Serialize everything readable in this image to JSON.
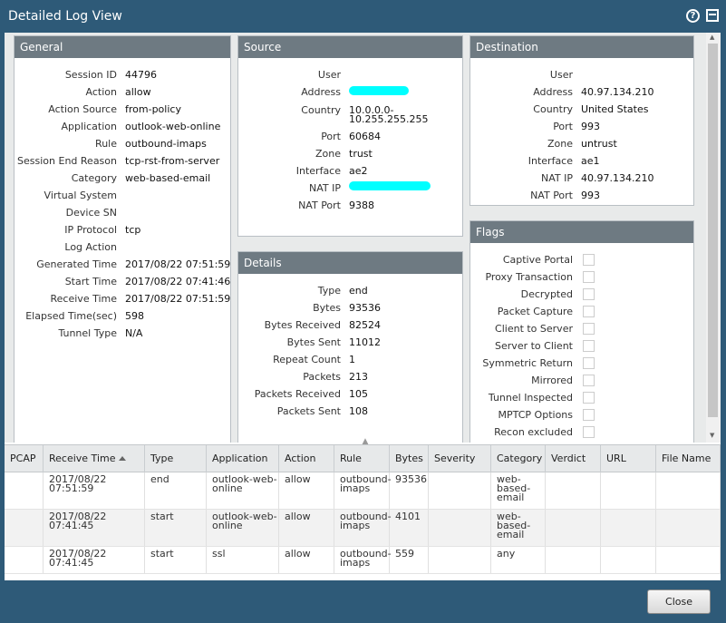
{
  "window": {
    "title": "Detailed Log View"
  },
  "general": {
    "header": "General",
    "fields": [
      {
        "label": "Session ID",
        "value": "44796"
      },
      {
        "label": "Action",
        "value": "allow"
      },
      {
        "label": "Action Source",
        "value": "from-policy"
      },
      {
        "label": "Application",
        "value": "outlook-web-online"
      },
      {
        "label": "Rule",
        "value": "outbound-imaps"
      },
      {
        "label": "Session End Reason",
        "value": "tcp-rst-from-server"
      },
      {
        "label": "Category",
        "value": "web-based-email"
      },
      {
        "label": "Virtual System",
        "value": ""
      },
      {
        "label": "Device SN",
        "value": ""
      },
      {
        "label": "IP Protocol",
        "value": "tcp"
      },
      {
        "label": "Log Action",
        "value": ""
      },
      {
        "label": "Generated Time",
        "value": "2017/08/22 07:51:59"
      },
      {
        "label": "Start Time",
        "value": "2017/08/22 07:41:46"
      },
      {
        "label": "Receive Time",
        "value": "2017/08/22 07:51:59"
      },
      {
        "label": "Elapsed Time(sec)",
        "value": "598"
      },
      {
        "label": "Tunnel Type",
        "value": "N/A"
      }
    ]
  },
  "source": {
    "header": "Source",
    "fields": [
      {
        "label": "User",
        "value": ""
      },
      {
        "label": "Address",
        "value": ""
      },
      {
        "label": "Country",
        "value": "10.0.0.0-",
        "value2": "10.255.255.255"
      },
      {
        "label": "Port",
        "value": "60684"
      },
      {
        "label": "Zone",
        "value": "trust"
      },
      {
        "label": "Interface",
        "value": "ae2"
      },
      {
        "label": "NAT IP",
        "value": ""
      },
      {
        "label": "NAT Port",
        "value": "9388"
      }
    ]
  },
  "destination": {
    "header": "Destination",
    "fields": [
      {
        "label": "User",
        "value": ""
      },
      {
        "label": "Address",
        "value": "40.97.134.210"
      },
      {
        "label": "Country",
        "value": "United States"
      },
      {
        "label": "Port",
        "value": "993"
      },
      {
        "label": "Zone",
        "value": "untrust"
      },
      {
        "label": "Interface",
        "value": "ae1"
      },
      {
        "label": "NAT IP",
        "value": "40.97.134.210"
      },
      {
        "label": "NAT Port",
        "value": "993"
      }
    ]
  },
  "details": {
    "header": "Details",
    "fields": [
      {
        "label": "Type",
        "value": "end"
      },
      {
        "label": "Bytes",
        "value": "93536"
      },
      {
        "label": "Bytes Received",
        "value": "82524"
      },
      {
        "label": "Bytes Sent",
        "value": "11012"
      },
      {
        "label": "Repeat Count",
        "value": "1"
      },
      {
        "label": "Packets",
        "value": "213"
      },
      {
        "label": "Packets Received",
        "value": "105"
      },
      {
        "label": "Packets Sent",
        "value": "108"
      }
    ]
  },
  "flags": {
    "header": "Flags",
    "items": [
      {
        "label": "Captive Portal",
        "checked": false
      },
      {
        "label": "Proxy Transaction",
        "checked": false
      },
      {
        "label": "Decrypted",
        "checked": false
      },
      {
        "label": "Packet Capture",
        "checked": false
      },
      {
        "label": "Client to Server",
        "checked": false
      },
      {
        "label": "Server to Client",
        "checked": false
      },
      {
        "label": "Symmetric Return",
        "checked": false
      },
      {
        "label": "Mirrored",
        "checked": false
      },
      {
        "label": "Tunnel Inspected",
        "checked": false
      },
      {
        "label": "MPTCP Options",
        "checked": false
      },
      {
        "label": "Recon excluded",
        "checked": false
      }
    ]
  },
  "log_table": {
    "columns": [
      "PCAP",
      "Receive Time",
      "Type",
      "Application",
      "Action",
      "Rule",
      "Bytes",
      "Severity",
      "Category",
      "Verdict",
      "URL",
      "File Name"
    ],
    "sorted_column": "Receive Time",
    "rows": [
      {
        "pcap": "",
        "receive_time": [
          "2017/08/22",
          "07:51:59"
        ],
        "type": "end",
        "application": [
          "outlook-web-",
          "online"
        ],
        "action": "allow",
        "rule": [
          "outbound-",
          "imaps"
        ],
        "bytes": "93536",
        "severity": "",
        "category": [
          "web-",
          "based-",
          "email"
        ],
        "verdict": "",
        "url": "",
        "file_name": ""
      },
      {
        "pcap": "",
        "receive_time": [
          "2017/08/22",
          "07:41:45"
        ],
        "type": "start",
        "application": [
          "outlook-web-",
          "online"
        ],
        "action": "allow",
        "rule": [
          "outbound-",
          "imaps"
        ],
        "bytes": "4101",
        "severity": "",
        "category": [
          "web-",
          "based-",
          "email"
        ],
        "verdict": "",
        "url": "",
        "file_name": ""
      },
      {
        "pcap": "",
        "receive_time": [
          "2017/08/22",
          "07:41:45"
        ],
        "type": "start",
        "application": [
          "ssl"
        ],
        "action": "allow",
        "rule": [
          "outbound-",
          "imaps"
        ],
        "bytes": "559",
        "severity": "",
        "category": [
          "any"
        ],
        "verdict": "",
        "url": "",
        "file_name": ""
      }
    ]
  },
  "footer": {
    "close_label": "Close"
  },
  "colors": {
    "titlebar": "#2e5a78",
    "panel_header": "#6e7a82",
    "redaction": "#00ffff"
  }
}
